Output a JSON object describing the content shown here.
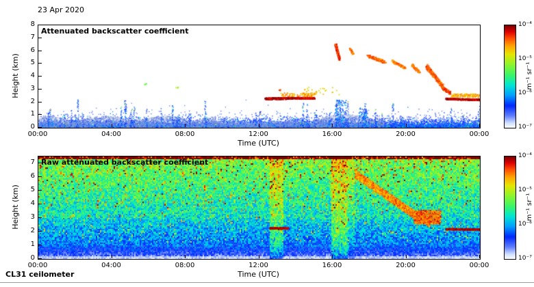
{
  "header": {
    "date": "23 Apr 2020"
  },
  "footer": {
    "instrument": "CL31 ceilometer"
  },
  "colormap": {
    "stops": [
      {
        "t": 0.0,
        "color": "#ffffff"
      },
      {
        "t": 0.05,
        "color": "#cfe0ff"
      },
      {
        "t": 0.12,
        "color": "#5f7fff"
      },
      {
        "t": 0.22,
        "color": "#0028ff"
      },
      {
        "t": 0.32,
        "color": "#009fff"
      },
      {
        "t": 0.42,
        "color": "#00e6d2"
      },
      {
        "t": 0.52,
        "color": "#3cf565"
      },
      {
        "t": 0.62,
        "color": "#8cf52d"
      },
      {
        "t": 0.72,
        "color": "#e6e600"
      },
      {
        "t": 0.8,
        "color": "#ffa500"
      },
      {
        "t": 0.88,
        "color": "#ff4600"
      },
      {
        "t": 0.94,
        "color": "#dc0000"
      },
      {
        "t": 1.0,
        "color": "#7d0000"
      }
    ]
  },
  "chart_data": [
    {
      "type": "heatmap",
      "style": "sparse-scatter",
      "title": "Attenuated backscatter coefficient",
      "xlabel": "Time (UTC)",
      "ylabel": "Height (km)",
      "x_ticks": [
        "00:00",
        "04:00",
        "08:00",
        "12:00",
        "16:00",
        "20:00",
        "00:00"
      ],
      "x_range_hours": [
        0,
        24
      ],
      "y_ticks": [
        0,
        1,
        2,
        3,
        4,
        5,
        6,
        7,
        8
      ],
      "ylim": [
        0,
        8
      ],
      "grid": false,
      "colorbar": {
        "label": "m⁻¹ sr⁻¹",
        "scale": "log",
        "tick_labels": [
          "10⁻⁴",
          "10⁻⁵",
          "10⁻⁶",
          "10⁻⁷"
        ]
      },
      "noise": {
        "surface_points": 11000,
        "spikes": 110,
        "spike_clusters": [
          {
            "x": 0.685,
            "h": 2.2,
            "n": 170,
            "w": 0.012
          },
          {
            "x": 0.735,
            "h": 1.6,
            "n": 90,
            "w": 0.01
          }
        ]
      },
      "haze": [
        {
          "x0": 0.0,
          "x1": 0.4,
          "h": 0.9,
          "n": 2600
        },
        {
          "x0": 0.4,
          "x1": 0.62,
          "h": 0.55,
          "n": 900
        },
        {
          "x0": 0.62,
          "x1": 0.78,
          "h": 1.05,
          "n": 1200
        }
      ],
      "features": [
        {
          "desc": "cloud-base line ~2.3 km, 12:20-13:45",
          "x0": 0.513,
          "y0": 2.3,
          "x1": 0.575,
          "y1": 2.35,
          "w": 0.14,
          "level": 0.97,
          "n": 420
        },
        {
          "desc": "line continues to ~15:00",
          "x0": 0.578,
          "y0": 2.35,
          "x1": 0.625,
          "y1": 2.35,
          "w": 0.14,
          "level": 0.95,
          "n": 260
        },
        {
          "desc": "orange fringe above line",
          "x0": 0.55,
          "y0": 2.62,
          "x1": 0.625,
          "y1": 2.62,
          "w": 0.28,
          "level": 0.8,
          "n": 90
        },
        {
          "desc": "sparse orange dots 14:30-16:30",
          "x0": 0.6,
          "y0": 2.95,
          "x1": 0.69,
          "y1": 2.9,
          "w": 0.55,
          "level": 0.74,
          "n": 28
        },
        {
          "desc": "red virga streak ~16:10, 5.4-6.6 km",
          "x0": 0.672,
          "y0": 6.55,
          "x1": 0.681,
          "y1": 5.35,
          "w": 0.14,
          "level": 0.9,
          "n": 170
        },
        {
          "desc": "small streak ~17:00",
          "x0": 0.705,
          "y0": 6.2,
          "x1": 0.712,
          "y1": 5.8,
          "w": 0.12,
          "level": 0.84,
          "n": 50
        },
        {
          "desc": "orange streak 17:50-18:50",
          "x0": 0.745,
          "y0": 5.65,
          "x1": 0.785,
          "y1": 5.15,
          "w": 0.22,
          "level": 0.85,
          "n": 160
        },
        {
          "desc": "orange streak 19:10-19:55",
          "x0": 0.8,
          "y0": 5.25,
          "x1": 0.83,
          "y1": 4.7,
          "w": 0.2,
          "level": 0.84,
          "n": 110
        },
        {
          "desc": "orange streak ~20:20",
          "x0": 0.845,
          "y0": 4.95,
          "x1": 0.862,
          "y1": 4.35,
          "w": 0.18,
          "level": 0.84,
          "n": 90
        },
        {
          "desc": "descending orange cloud 21:00-22:00",
          "x0": 0.878,
          "y0": 4.85,
          "x1": 0.915,
          "y1": 3.25,
          "w": 0.34,
          "level": 0.86,
          "n": 380
        },
        {
          "desc": "cloud lowering ~22:00",
          "x0": 0.912,
          "y0": 3.2,
          "x1": 0.932,
          "y1": 2.75,
          "w": 0.24,
          "level": 0.88,
          "n": 120
        },
        {
          "desc": "cloud-base line ~2.25 km, 22:10-24:00",
          "x0": 0.922,
          "y0": 2.3,
          "x1": 1.0,
          "y1": 2.22,
          "w": 0.12,
          "level": 0.97,
          "n": 420
        },
        {
          "desc": "orange fringe above right line",
          "x0": 0.935,
          "y0": 2.58,
          "x1": 1.0,
          "y1": 2.55,
          "w": 0.26,
          "level": 0.79,
          "n": 110
        },
        {
          "desc": "isolated speck ~05:45, 3.5 km",
          "x0": 0.238,
          "y0": 3.45,
          "x1": 0.242,
          "y1": 3.45,
          "w": 0.1,
          "level": 0.58,
          "n": 5
        },
        {
          "desc": "isolated speck ~07:30, 3.2 km",
          "x0": 0.312,
          "y0": 3.2,
          "x1": 0.316,
          "y1": 3.2,
          "w": 0.1,
          "level": 0.62,
          "n": 5
        },
        {
          "desc": "isolated red speck ~13:05, 3.0 km",
          "x0": 0.545,
          "y0": 3.0,
          "x1": 0.548,
          "y1": 3.0,
          "w": 0.1,
          "level": 0.88,
          "n": 5
        }
      ]
    },
    {
      "type": "heatmap",
      "style": "dense-speckle",
      "title": "Raw attenuated backscatter coefficient",
      "xlabel": "Time (UTC)",
      "ylabel": "Height (km)",
      "x_ticks": [
        "00:00",
        "04:00",
        "08:00",
        "12:00",
        "16:00",
        "20:00",
        "00:00"
      ],
      "x_range_hours": [
        0,
        24
      ],
      "y_ticks": [
        0,
        1,
        2,
        3,
        4,
        5,
        6,
        7
      ],
      "ylim": [
        0,
        7.5
      ],
      "grid": false,
      "colorbar": {
        "label": "m⁻¹ sr⁻¹",
        "scale": "log",
        "tick_labels": [
          "10⁻⁴",
          "10⁻⁵",
          "10⁻⁶",
          "10⁻⁷"
        ]
      },
      "profile_desc": "speckle noise brightening with height; white-blue below 1 km, blue-cyan 1-3 km, green with yellow/red specks above, red band at top edge",
      "top_edge_boost": 0.28,
      "bands": [
        {
          "desc": "enhanced noise column 12:35-13:15",
          "x0": 0.523,
          "x1": 0.553,
          "boost": 0.16
        },
        {
          "desc": "enhanced noise column 15:55-16:50",
          "x0": 0.662,
          "x1": 0.7,
          "boost": 0.18
        },
        {
          "desc": "weak enhancement after 16:50",
          "x0": 0.7,
          "x1": 0.716,
          "boost": 0.07
        }
      ],
      "diagonal": {
        "desc": "descending precipitation/cloud band 17:00-21:30, 6.3 -> 2.7 km",
        "points": [
          [
            0.715,
            6.3
          ],
          [
            0.76,
            5.3
          ],
          [
            0.805,
            4.3
          ],
          [
            0.85,
            3.3
          ],
          [
            0.885,
            2.7
          ]
        ],
        "w": 0.3,
        "level": 0.82,
        "n": 1500
      },
      "blob": {
        "desc": "strong orange core 20:20-21:50, 2.6-3.6 km",
        "x0": 0.85,
        "x1": 0.91,
        "y0": 2.6,
        "y1": 3.6,
        "level": 0.86,
        "n": 520
      },
      "lines": [
        {
          "desc": "dark-red cloud line ~2.3 km, 12:35-13:35",
          "x0": 0.523,
          "y0": 2.28,
          "x1": 0.565,
          "y1": 2.28,
          "w": 0.1,
          "n": 260
        },
        {
          "desc": "dark-red cloud line ~2.2 km, 22:10-24:00",
          "x0": 0.922,
          "y0": 2.22,
          "x1": 1.0,
          "y1": 2.2,
          "w": 0.1,
          "n": 420
        }
      ]
    }
  ]
}
